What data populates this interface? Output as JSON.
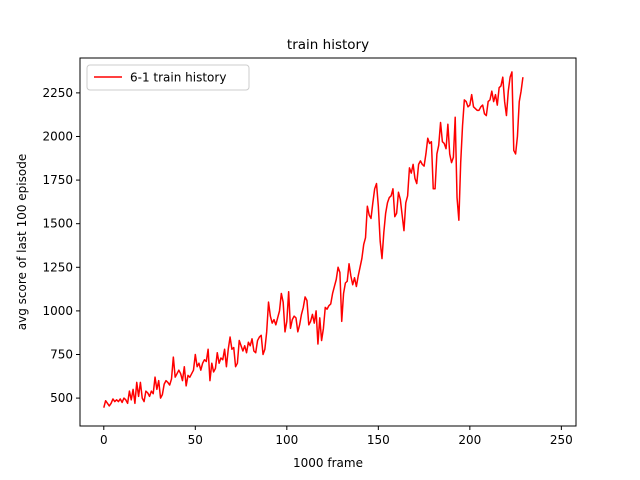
{
  "chart_data": {
    "type": "line",
    "title": "train history",
    "xlabel": "1000 frame",
    "ylabel": "avg score of last 100 episode",
    "xlim": [
      -13,
      258
    ],
    "ylim": [
      340,
      2450
    ],
    "xticks": [
      0,
      50,
      100,
      150,
      200,
      250
    ],
    "yticks": [
      500,
      750,
      1000,
      1250,
      1500,
      1750,
      2000,
      2250
    ],
    "grid": false,
    "legend_position": "top-left",
    "series": [
      {
        "name": "6-1 train history",
        "color": "#ff0000",
        "points": [
          [
            0,
            445
          ],
          [
            1,
            485
          ],
          [
            2,
            470
          ],
          [
            3,
            455
          ],
          [
            4,
            470
          ],
          [
            5,
            495
          ],
          [
            6,
            480
          ],
          [
            7,
            490
          ],
          [
            8,
            480
          ],
          [
            9,
            495
          ],
          [
            10,
            475
          ],
          [
            11,
            500
          ],
          [
            12,
            490
          ],
          [
            13,
            470
          ],
          [
            14,
            540
          ],
          [
            15,
            490
          ],
          [
            16,
            550
          ],
          [
            17,
            470
          ],
          [
            18,
            590
          ],
          [
            19,
            510
          ],
          [
            20,
            590
          ],
          [
            21,
            500
          ],
          [
            22,
            480
          ],
          [
            23,
            540
          ],
          [
            24,
            530
          ],
          [
            25,
            510
          ],
          [
            26,
            540
          ],
          [
            27,
            525
          ],
          [
            28,
            620
          ],
          [
            29,
            550
          ],
          [
            30,
            600
          ],
          [
            31,
            500
          ],
          [
            32,
            520
          ],
          [
            33,
            580
          ],
          [
            34,
            600
          ],
          [
            35,
            590
          ],
          [
            36,
            575
          ],
          [
            37,
            610
          ],
          [
            38,
            735
          ],
          [
            39,
            620
          ],
          [
            40,
            640
          ],
          [
            41,
            660
          ],
          [
            42,
            640
          ],
          [
            43,
            600
          ],
          [
            44,
            680
          ],
          [
            45,
            570
          ],
          [
            46,
            630
          ],
          [
            47,
            620
          ],
          [
            48,
            640
          ],
          [
            49,
            660
          ],
          [
            50,
            750
          ],
          [
            51,
            680
          ],
          [
            52,
            700
          ],
          [
            53,
            660
          ],
          [
            54,
            700
          ],
          [
            55,
            720
          ],
          [
            56,
            710
          ],
          [
            57,
            780
          ],
          [
            58,
            600
          ],
          [
            59,
            700
          ],
          [
            60,
            650
          ],
          [
            61,
            670
          ],
          [
            62,
            760
          ],
          [
            63,
            700
          ],
          [
            64,
            730
          ],
          [
            65,
            720
          ],
          [
            66,
            780
          ],
          [
            67,
            680
          ],
          [
            68,
            780
          ],
          [
            69,
            850
          ],
          [
            70,
            780
          ],
          [
            71,
            790
          ],
          [
            72,
            680
          ],
          [
            73,
            700
          ],
          [
            74,
            830
          ],
          [
            75,
            800
          ],
          [
            76,
            770
          ],
          [
            77,
            800
          ],
          [
            78,
            760
          ],
          [
            79,
            820
          ],
          [
            80,
            800
          ],
          [
            81,
            840
          ],
          [
            82,
            770
          ],
          [
            83,
            760
          ],
          [
            84,
            830
          ],
          [
            85,
            850
          ],
          [
            86,
            860
          ],
          [
            87,
            750
          ],
          [
            88,
            780
          ],
          [
            89,
            880
          ],
          [
            90,
            1050
          ],
          [
            91,
            970
          ],
          [
            92,
            930
          ],
          [
            93,
            950
          ],
          [
            94,
            920
          ],
          [
            95,
            960
          ],
          [
            96,
            1000
          ],
          [
            97,
            1100
          ],
          [
            98,
            1050
          ],
          [
            99,
            880
          ],
          [
            100,
            940
          ],
          [
            101,
            1110
          ],
          [
            102,
            900
          ],
          [
            103,
            950
          ],
          [
            104,
            970
          ],
          [
            105,
            960
          ],
          [
            106,
            880
          ],
          [
            107,
            920
          ],
          [
            108,
            980
          ],
          [
            109,
            1020
          ],
          [
            110,
            1080
          ],
          [
            111,
            1060
          ],
          [
            112,
            920
          ],
          [
            113,
            940
          ],
          [
            114,
            980
          ],
          [
            115,
            930
          ],
          [
            116,
            1000
          ],
          [
            117,
            810
          ],
          [
            118,
            960
          ],
          [
            119,
            830
          ],
          [
            120,
            900
          ],
          [
            121,
            1020
          ],
          [
            122,
            1010
          ],
          [
            123,
            1030
          ],
          [
            124,
            1040
          ],
          [
            125,
            1100
          ],
          [
            126,
            1140
          ],
          [
            127,
            1180
          ],
          [
            128,
            1250
          ],
          [
            129,
            1220
          ],
          [
            130,
            940
          ],
          [
            131,
            1100
          ],
          [
            132,
            1160
          ],
          [
            133,
            1170
          ],
          [
            134,
            1270
          ],
          [
            135,
            1200
          ],
          [
            136,
            1150
          ],
          [
            137,
            1190
          ],
          [
            138,
            1140
          ],
          [
            139,
            1200
          ],
          [
            140,
            1250
          ],
          [
            141,
            1300
          ],
          [
            142,
            1380
          ],
          [
            143,
            1420
          ],
          [
            144,
            1600
          ],
          [
            145,
            1550
          ],
          [
            146,
            1530
          ],
          [
            147,
            1620
          ],
          [
            148,
            1700
          ],
          [
            149,
            1730
          ],
          [
            150,
            1600
          ],
          [
            151,
            1400
          ],
          [
            152,
            1300
          ],
          [
            153,
            1450
          ],
          [
            154,
            1560
          ],
          [
            155,
            1620
          ],
          [
            156,
            1650
          ],
          [
            157,
            1660
          ],
          [
            158,
            1700
          ],
          [
            159,
            1540
          ],
          [
            160,
            1560
          ],
          [
            161,
            1680
          ],
          [
            162,
            1640
          ],
          [
            163,
            1550
          ],
          [
            164,
            1460
          ],
          [
            165,
            1620
          ],
          [
            166,
            1660
          ],
          [
            167,
            1820
          ],
          [
            168,
            1790
          ],
          [
            169,
            1840
          ],
          [
            170,
            1760
          ],
          [
            171,
            1730
          ],
          [
            172,
            1840
          ],
          [
            173,
            1860
          ],
          [
            174,
            1840
          ],
          [
            175,
            1830
          ],
          [
            176,
            1900
          ],
          [
            177,
            1990
          ],
          [
            178,
            1960
          ],
          [
            179,
            1970
          ],
          [
            180,
            1700
          ],
          [
            181,
            1700
          ],
          [
            182,
            1900
          ],
          [
            183,
            1950
          ],
          [
            184,
            2080
          ],
          [
            185,
            1970
          ],
          [
            186,
            1960
          ],
          [
            187,
            1930
          ],
          [
            188,
            2070
          ],
          [
            189,
            1900
          ],
          [
            190,
            1850
          ],
          [
            191,
            1880
          ],
          [
            192,
            2110
          ],
          [
            193,
            1650
          ],
          [
            194,
            1520
          ],
          [
            195,
            1850
          ],
          [
            196,
            2060
          ],
          [
            197,
            2210
          ],
          [
            198,
            2200
          ],
          [
            199,
            2170
          ],
          [
            200,
            2180
          ],
          [
            201,
            2240
          ],
          [
            202,
            2170
          ],
          [
            203,
            2160
          ],
          [
            204,
            2150
          ],
          [
            205,
            2150
          ],
          [
            206,
            2170
          ],
          [
            207,
            2180
          ],
          [
            208,
            2130
          ],
          [
            209,
            2120
          ],
          [
            210,
            2200
          ],
          [
            211,
            2210
          ],
          [
            212,
            2260
          ],
          [
            213,
            2200
          ],
          [
            214,
            2240
          ],
          [
            215,
            2180
          ],
          [
            216,
            2280
          ],
          [
            217,
            2290
          ],
          [
            218,
            2340
          ],
          [
            219,
            2200
          ],
          [
            220,
            2120
          ],
          [
            221,
            2260
          ],
          [
            222,
            2340
          ],
          [
            223,
            2370
          ],
          [
            224,
            1920
          ],
          [
            225,
            1900
          ],
          [
            226,
            2000
          ],
          [
            227,
            2200
          ],
          [
            228,
            2260
          ],
          [
            229,
            2340
          ]
        ]
      }
    ]
  }
}
